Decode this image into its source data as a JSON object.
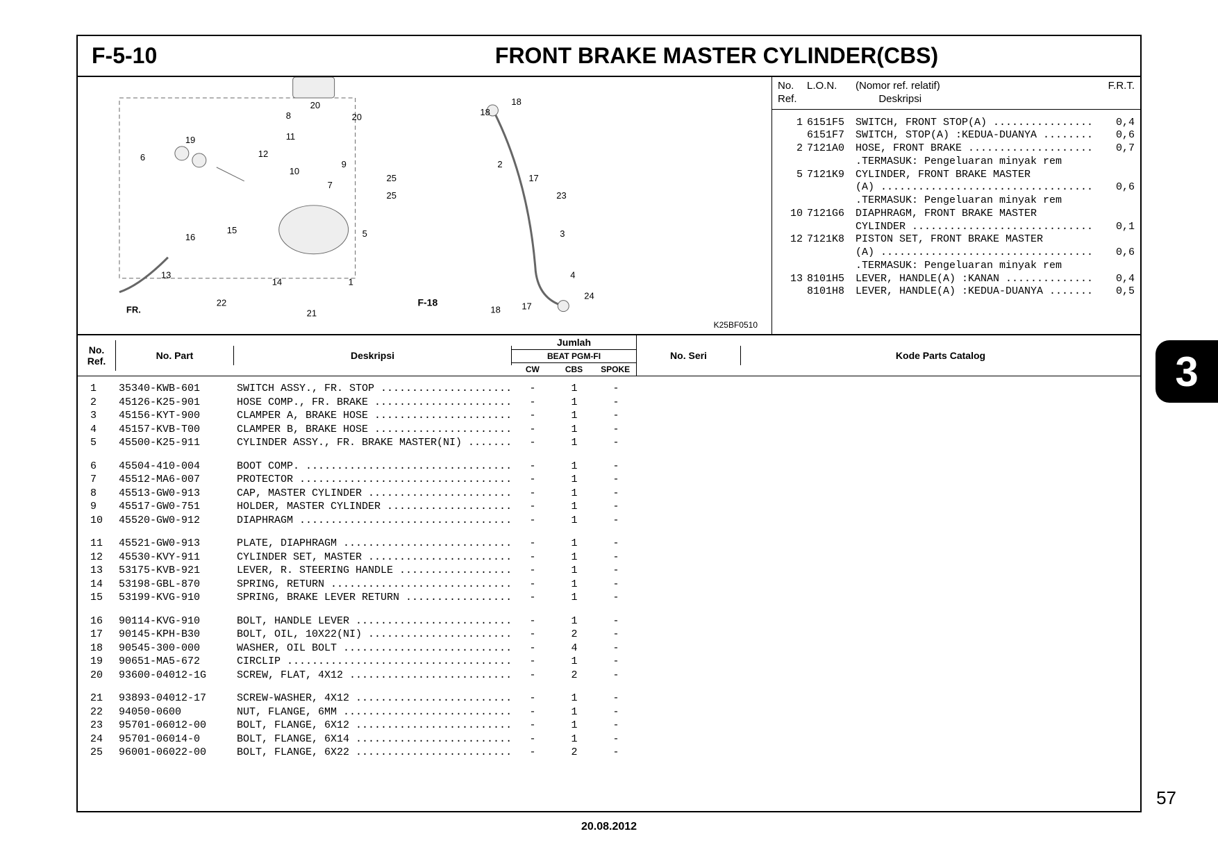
{
  "header": {
    "section_code": "F-5-10",
    "title": "FRONT BRAKE MASTER CYLINDER(CBS)"
  },
  "diagram": {
    "image_id": "K25BF0510",
    "cross_ref": "F-18"
  },
  "ref_table": {
    "header": {
      "col_ref": "No.\nRef.",
      "col_lon": "L.O.N.",
      "col_nomor": "(Nomor ref. relatif)",
      "col_desc": "Deskripsi",
      "col_frt": "F.R.T."
    },
    "rows": [
      {
        "ref": "1",
        "lon": "6151F5",
        "desc": "SWITCH, FRONT STOP(A) ................",
        "frt": "0,4"
      },
      {
        "ref": "",
        "lon": "6151F7",
        "desc": "SWITCH, STOP(A) :KEDUA-DUANYA ........",
        "frt": "0,6"
      },
      {
        "ref": "2",
        "lon": "7121A0",
        "desc": "HOSE, FRONT BRAKE ....................",
        "frt": "0,7"
      },
      {
        "ref": "",
        "lon": "",
        "desc": ".TERMASUK: Pengeluaran minyak rem",
        "frt": ""
      },
      {
        "ref": "5",
        "lon": "7121K9",
        "desc": "CYLINDER, FRONT BRAKE MASTER",
        "frt": ""
      },
      {
        "ref": "",
        "lon": "",
        "desc": "(A) ..................................",
        "frt": "0,6"
      },
      {
        "ref": "",
        "lon": "",
        "desc": ".TERMASUK: Pengeluaran minyak rem",
        "frt": ""
      },
      {
        "ref": "10",
        "lon": "7121G6",
        "desc": "DIAPHRAGM, FRONT BRAKE MASTER",
        "frt": ""
      },
      {
        "ref": "",
        "lon": "",
        "desc": "CYLINDER .............................",
        "frt": "0,1"
      },
      {
        "ref": "12",
        "lon": "7121K8",
        "desc": "PISTON SET, FRONT BRAKE MASTER",
        "frt": ""
      },
      {
        "ref": "",
        "lon": "",
        "desc": "(A) ..................................",
        "frt": "0,6"
      },
      {
        "ref": "",
        "lon": "",
        "desc": ".TERMASUK: Pengeluaran minyak rem",
        "frt": ""
      },
      {
        "ref": "13",
        "lon": "8101H5",
        "desc": "LEVER, HANDLE(A) :KANAN ..............",
        "frt": "0,4"
      },
      {
        "ref": "",
        "lon": "8101H8",
        "desc": "LEVER, HANDLE(A) :KEDUA-DUANYA .......",
        "frt": "0,5"
      }
    ]
  },
  "parts_table": {
    "header": {
      "ref": "No.\nRef.",
      "part": "No. Part",
      "desc": "Deskripsi",
      "qty_top": "Jumlah",
      "qty_mid": "BEAT PGM-FI",
      "qty_cw": "CW",
      "qty_cbs": "CBS",
      "qty_spoke": "SPOKE",
      "seri": "No. Seri",
      "kode": "Kode Parts Catalog"
    },
    "groups": [
      [
        {
          "ref": "1",
          "part": "35340-KWB-601",
          "desc": "SWITCH ASSY., FR. STOP ......................",
          "cw": "-",
          "cbs": "1",
          "spoke": "-"
        },
        {
          "ref": "2",
          "part": "45126-K25-901",
          "desc": "HOSE COMP., FR. BRAKE .......................",
          "cw": "-",
          "cbs": "1",
          "spoke": "-"
        },
        {
          "ref": "3",
          "part": "45156-KYT-900",
          "desc": "CLAMPER A, BRAKE HOSE .......................",
          "cw": "-",
          "cbs": "1",
          "spoke": "-"
        },
        {
          "ref": "4",
          "part": "45157-KVB-T00",
          "desc": "CLAMPER B, BRAKE HOSE .......................",
          "cw": "-",
          "cbs": "1",
          "spoke": "-"
        },
        {
          "ref": "5",
          "part": "45500-K25-911",
          "desc": "CYLINDER ASSY., FR. BRAKE MASTER(NI) ........",
          "cw": "-",
          "cbs": "1",
          "spoke": "-"
        }
      ],
      [
        {
          "ref": "6",
          "part": "45504-410-004",
          "desc": "BOOT COMP. ..................................",
          "cw": "-",
          "cbs": "1",
          "spoke": "-"
        },
        {
          "ref": "7",
          "part": "45512-MA6-007",
          "desc": "PROTECTOR ...................................",
          "cw": "-",
          "cbs": "1",
          "spoke": "-"
        },
        {
          "ref": "8",
          "part": "45513-GW0-913",
          "desc": "CAP, MASTER CYLINDER ........................",
          "cw": "-",
          "cbs": "1",
          "spoke": "-"
        },
        {
          "ref": "9",
          "part": "45517-GW0-751",
          "desc": "HOLDER, MASTER CYLINDER .....................",
          "cw": "-",
          "cbs": "1",
          "spoke": "-"
        },
        {
          "ref": "10",
          "part": "45520-GW0-912",
          "desc": "DIAPHRAGM ...................................",
          "cw": "-",
          "cbs": "1",
          "spoke": "-"
        }
      ],
      [
        {
          "ref": "11",
          "part": "45521-GW0-913",
          "desc": "PLATE, DIAPHRAGM ............................",
          "cw": "-",
          "cbs": "1",
          "spoke": "-"
        },
        {
          "ref": "12",
          "part": "45530-KVY-911",
          "desc": "CYLINDER SET, MASTER ........................",
          "cw": "-",
          "cbs": "1",
          "spoke": "-"
        },
        {
          "ref": "13",
          "part": "53175-KVB-921",
          "desc": "LEVER, R. STEERING HANDLE ...................",
          "cw": "-",
          "cbs": "1",
          "spoke": "-"
        },
        {
          "ref": "14",
          "part": "53198-GBL-870",
          "desc": "SPRING, RETURN ..............................",
          "cw": "-",
          "cbs": "1",
          "spoke": "-"
        },
        {
          "ref": "15",
          "part": "53199-KVG-910",
          "desc": "SPRING, BRAKE LEVER RETURN ..................",
          "cw": "-",
          "cbs": "1",
          "spoke": "-"
        }
      ],
      [
        {
          "ref": "16",
          "part": "90114-KVG-910",
          "desc": "BOLT, HANDLE LEVER ..........................",
          "cw": "-",
          "cbs": "1",
          "spoke": "-"
        },
        {
          "ref": "17",
          "part": "90145-KPH-B30",
          "desc": "BOLT, OIL, 10X22(NI) ........................",
          "cw": "-",
          "cbs": "2",
          "spoke": "-"
        },
        {
          "ref": "18",
          "part": "90545-300-000",
          "desc": "WASHER, OIL BOLT ............................",
          "cw": "-",
          "cbs": "4",
          "spoke": "-"
        },
        {
          "ref": "19",
          "part": "90651-MA5-672",
          "desc": "CIRCLIP .....................................",
          "cw": "-",
          "cbs": "1",
          "spoke": "-"
        },
        {
          "ref": "20",
          "part": "93600-04012-1G",
          "desc": "SCREW, FLAT, 4X12 ...........................",
          "cw": "-",
          "cbs": "2",
          "spoke": "-"
        }
      ],
      [
        {
          "ref": "21",
          "part": "93893-04012-17",
          "desc": "SCREW-WASHER, 4X12 ..........................",
          "cw": "-",
          "cbs": "1",
          "spoke": "-"
        },
        {
          "ref": "22",
          "part": "94050-0600",
          "desc": "NUT, FLANGE, 6MM ............................",
          "cw": "-",
          "cbs": "1",
          "spoke": "-"
        },
        {
          "ref": "23",
          "part": "95701-06012-00",
          "desc": "BOLT, FLANGE, 6X12 ..........................",
          "cw": "-",
          "cbs": "1",
          "spoke": "-"
        },
        {
          "ref": "24",
          "part": "95701-06014-0",
          "desc": "BOLT, FLANGE, 6X14 ..........................",
          "cw": "-",
          "cbs": "1",
          "spoke": "-"
        },
        {
          "ref": "25",
          "part": "96001-06022-00",
          "desc": "BOLT, FLANGE, 6X22 ..........................",
          "cw": "-",
          "cbs": "2",
          "spoke": "-"
        }
      ]
    ]
  },
  "footer": {
    "date": "20.08.2012",
    "page_num": "57",
    "section_tab": "3"
  }
}
